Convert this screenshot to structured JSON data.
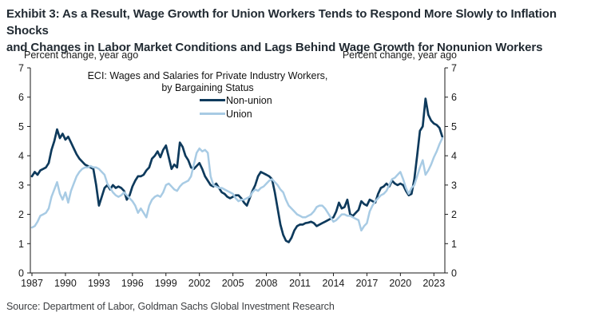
{
  "page": {
    "title_lines": [
      "Exhibit 3: As a Result, Wage Growth for Union Workers Tends to Respond More Slowly to Inflation Shocks",
      "and Changes in Labor Market Conditions and Lags Behind Wage Growth for Nonunion Workers"
    ],
    "source": "Source: Department of Labor, Goldman Sachs Global Investment Research"
  },
  "chart_data": {
    "type": "line",
    "title": "ECI: Wages and Salaries for Private Industry Workers,",
    "subtitle": "by Bargaining Status",
    "left_axis_label": "Percent change, year ago",
    "right_axis_label": "Percent change, year ago",
    "grid": false,
    "legend_position": "top-center-inside",
    "ylim": [
      0,
      7
    ],
    "yticks": [
      0,
      1,
      2,
      3,
      4,
      5,
      6,
      7
    ],
    "xticks": [
      1987,
      1990,
      1993,
      1996,
      1999,
      2002,
      2005,
      2008,
      2011,
      2014,
      2017,
      2020,
      2023
    ],
    "x_start_year": 1987,
    "points_per_year": 4,
    "axis_color": "#1a1a1a",
    "series": [
      {
        "name": "Non-union",
        "color": "#0E3A5C",
        "width": 2.7,
        "values": [
          3.3,
          3.45,
          3.35,
          3.5,
          3.55,
          3.6,
          3.75,
          4.2,
          4.5,
          4.9,
          4.6,
          4.75,
          4.55,
          4.65,
          4.45,
          4.25,
          4.05,
          3.9,
          3.8,
          3.7,
          3.65,
          3.6,
          3.55,
          3.0,
          2.3,
          2.6,
          2.9,
          3.0,
          2.85,
          3.0,
          2.9,
          2.95,
          2.9,
          2.8,
          2.5,
          2.65,
          2.95,
          3.15,
          3.3,
          3.3,
          3.35,
          3.5,
          3.6,
          3.9,
          4.0,
          4.15,
          3.95,
          4.2,
          4.35,
          3.95,
          3.55,
          3.7,
          3.6,
          4.45,
          4.3,
          4.0,
          3.85,
          3.6,
          3.55,
          3.65,
          3.75,
          3.55,
          3.3,
          3.15,
          3.0,
          2.95,
          3.05,
          2.9,
          2.75,
          2.7,
          2.6,
          2.55,
          2.6,
          2.65,
          2.65,
          2.55,
          2.4,
          2.3,
          2.55,
          2.8,
          3.0,
          3.3,
          3.45,
          3.4,
          3.35,
          3.3,
          3.2,
          2.75,
          2.2,
          1.65,
          1.3,
          1.1,
          1.05,
          1.2,
          1.45,
          1.6,
          1.65,
          1.65,
          1.7,
          1.72,
          1.75,
          1.7,
          1.6,
          1.65,
          1.7,
          1.75,
          1.8,
          1.85,
          1.9,
          2.1,
          2.4,
          2.2,
          2.25,
          2.5,
          2.0,
          1.95,
          2.05,
          2.15,
          2.45,
          2.35,
          2.3,
          2.5,
          2.45,
          2.4,
          2.7,
          2.9,
          2.95,
          3.05,
          2.95,
          3.15,
          3.05,
          3.0,
          3.05,
          3.0,
          2.8,
          2.65,
          2.7,
          3.2,
          4.0,
          4.85,
          5.0,
          5.95,
          5.4,
          5.2,
          5.1,
          5.05,
          4.95,
          4.65
        ]
      },
      {
        "name": "Union",
        "color": "#A8CBE4",
        "width": 2.5,
        "values": [
          1.55,
          1.6,
          1.75,
          1.95,
          2.0,
          2.05,
          2.2,
          2.6,
          2.85,
          3.1,
          2.7,
          2.5,
          2.75,
          2.4,
          2.8,
          3.05,
          3.3,
          3.45,
          3.55,
          3.6,
          3.6,
          3.65,
          3.6,
          3.6,
          3.55,
          3.45,
          3.35,
          3.05,
          2.9,
          2.75,
          2.65,
          2.6,
          2.65,
          2.75,
          2.65,
          2.55,
          2.45,
          2.3,
          2.05,
          2.2,
          2.05,
          1.9,
          2.3,
          2.5,
          2.6,
          2.65,
          2.6,
          2.75,
          3.0,
          3.05,
          2.95,
          2.85,
          2.8,
          2.95,
          3.05,
          3.1,
          3.15,
          3.3,
          3.7,
          4.1,
          4.25,
          4.15,
          4.2,
          4.1,
          3.3,
          3.0,
          2.95,
          2.9,
          2.9,
          2.85,
          2.8,
          2.75,
          2.7,
          2.55,
          2.45,
          2.5,
          2.5,
          2.55,
          2.6,
          2.75,
          2.85,
          2.8,
          2.9,
          2.95,
          3.05,
          3.15,
          3.2,
          3.1,
          3.0,
          2.85,
          2.75,
          2.5,
          2.3,
          2.2,
          2.1,
          2.0,
          1.95,
          1.9,
          1.9,
          1.95,
          2.0,
          2.1,
          2.25,
          2.3,
          2.3,
          2.2,
          2.05,
          1.9,
          1.75,
          1.8,
          1.9,
          2.0,
          2.0,
          1.95,
          1.95,
          1.9,
          1.85,
          1.8,
          1.45,
          1.6,
          1.7,
          2.1,
          2.3,
          2.45,
          2.55,
          2.65,
          2.7,
          2.8,
          3.0,
          3.2,
          3.25,
          3.35,
          3.45,
          3.2,
          2.9,
          2.7,
          2.9,
          3.0,
          3.3,
          3.6,
          3.85,
          3.35,
          3.5,
          3.7,
          3.95,
          4.15,
          4.4,
          4.6
        ]
      }
    ]
  }
}
